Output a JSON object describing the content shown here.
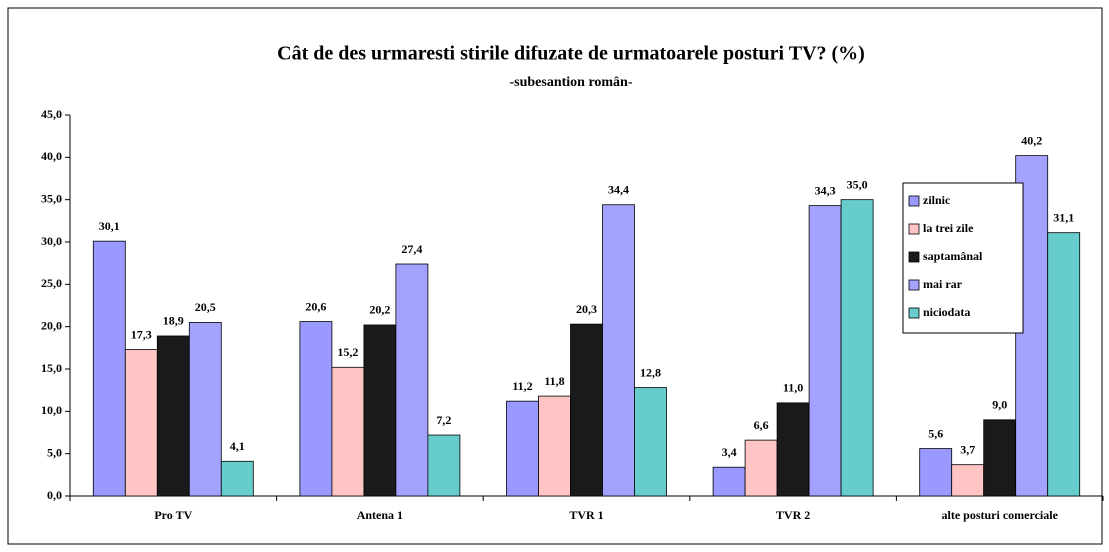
{
  "chart_data": {
    "type": "bar",
    "title": "Cât de des urmaresti stirile difuzate de urmatoarele posturi TV? (%)",
    "subtitle": "-subesantion român-",
    "categories": [
      "Pro TV",
      "Antena 1",
      "TVR 1",
      "TVR 2",
      "alte posturi comerciale"
    ],
    "series": [
      {
        "name": "zilnic",
        "color": "#9999ff",
        "values": [
          30.1,
          20.6,
          11.2,
          3.4,
          5.6
        ],
        "value_labels": [
          "30,1",
          "20,6",
          "11,2",
          "3,4",
          "5,6"
        ]
      },
      {
        "name": "la trei zile",
        "color": "#ffc4c4",
        "values": [
          17.3,
          15.2,
          11.8,
          6.6,
          3.7
        ],
        "value_labels": [
          "17,3",
          "15,2",
          "11,8",
          "6,6",
          "3,7"
        ]
      },
      {
        "name": "saptamânal",
        "color": "#1a1a1a",
        "values": [
          18.9,
          20.2,
          20.3,
          11.0,
          9.0
        ],
        "value_labels": [
          "18,9",
          "20,2",
          "20,3",
          "11,0",
          "9,0"
        ]
      },
      {
        "name": "mai rar",
        "color": "#a3a3ff",
        "values": [
          20.5,
          27.4,
          34.4,
          34.3,
          40.2
        ],
        "value_labels": [
          "20,5",
          "27,4",
          "34,4",
          "34,3",
          "40,2"
        ]
      },
      {
        "name": "niciodata",
        "color": "#66cccc",
        "values": [
          4.1,
          7.2,
          12.8,
          35.0,
          31.1
        ],
        "value_labels": [
          "4,1",
          "7,2",
          "12,8",
          "35,0",
          "31,1"
        ]
      }
    ],
    "ylim": [
      0,
      45
    ],
    "yticks": [
      {
        "value": 0,
        "label": "0,0"
      },
      {
        "value": 5,
        "label": "5,0"
      },
      {
        "value": 10,
        "label": "10,0"
      },
      {
        "value": 15,
        "label": "15,0"
      },
      {
        "value": 20,
        "label": "20,0"
      },
      {
        "value": 25,
        "label": "25,0"
      },
      {
        "value": 30,
        "label": "30,0"
      },
      {
        "value": 35,
        "label": "35,0"
      },
      {
        "value": 40,
        "label": "40,0"
      },
      {
        "value": 45,
        "label": "45,0"
      }
    ],
    "grid": false,
    "legend": "right"
  }
}
